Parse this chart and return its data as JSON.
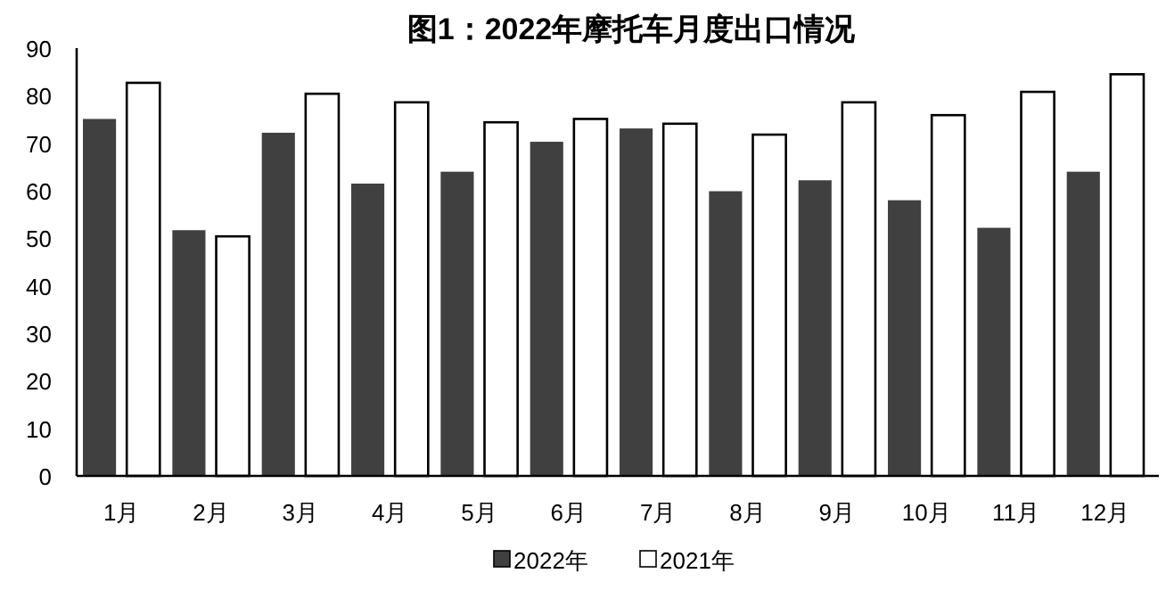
{
  "chart_data": {
    "type": "bar",
    "title": "图1：2022年摩托车月度出口情况",
    "categories": [
      "1月",
      "2月",
      "3月",
      "4月",
      "5月",
      "6月",
      "7月",
      "8月",
      "9月",
      "10月",
      "11月",
      "12月"
    ],
    "series": [
      {
        "name": "2022年",
        "color": "#404040",
        "values": [
          75.1,
          51.7,
          72.2,
          61.5,
          64.0,
          70.3,
          73.1,
          59.9,
          62.2,
          58.0,
          52.2,
          64.0
        ]
      },
      {
        "name": "2021年",
        "color": "#ffffff",
        "values": [
          82.7,
          50.4,
          80.4,
          78.6,
          74.4,
          75.1,
          74.1,
          71.8,
          78.6,
          75.9,
          80.8,
          84.5
        ]
      }
    ],
    "ylim": [
      0,
      90
    ],
    "yticks": [
      0,
      10,
      20,
      30,
      40,
      50,
      60,
      70,
      80,
      90
    ],
    "grid": false,
    "legend": "bottom"
  }
}
